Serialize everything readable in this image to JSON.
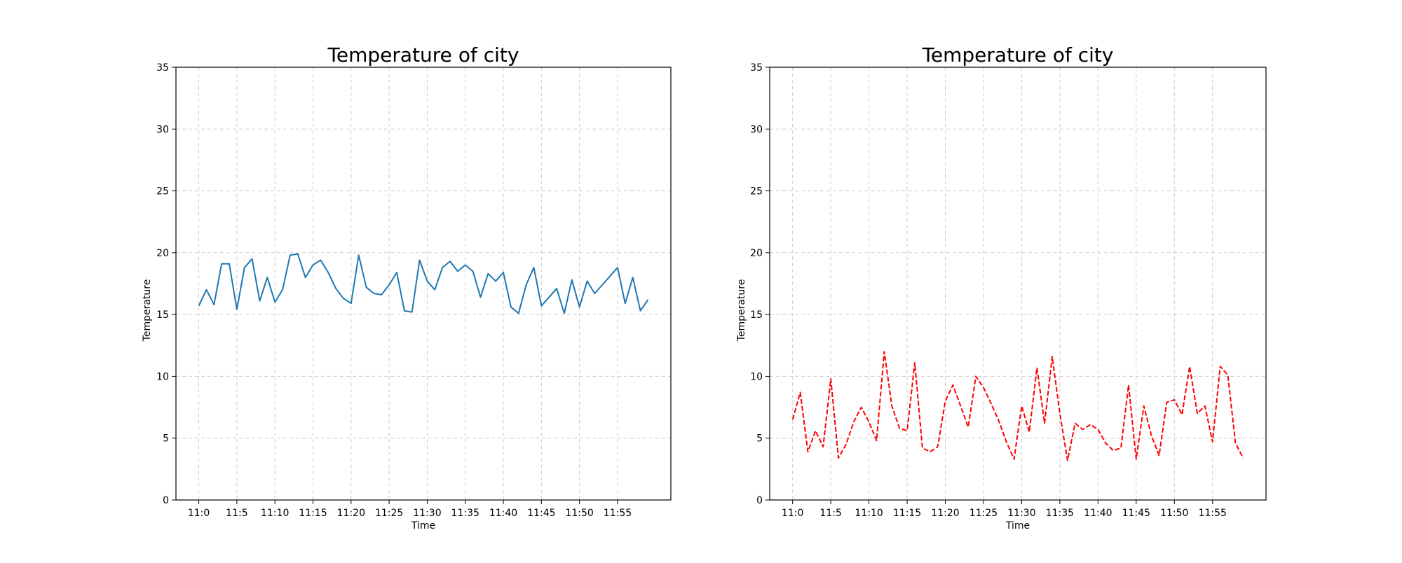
{
  "chart_data": [
    {
      "type": "line",
      "title": "Temperature of city",
      "xlabel": "Time",
      "ylabel": "Temperature",
      "xlim": [
        -3,
        62
      ],
      "ylim": [
        0,
        35
      ],
      "grid": true,
      "categories": [
        "11:0",
        "11:5",
        "11:10",
        "11:15",
        "11:20",
        "11:25",
        "11:30",
        "11:35",
        "11:40",
        "11:45",
        "11:50",
        "11:55"
      ],
      "yticks": [
        "0",
        "5",
        "10",
        "15",
        "20",
        "25",
        "30",
        "35"
      ],
      "series": [
        {
          "color": "#1f77b4",
          "line_style": "solid",
          "x": [
            0,
            1,
            2,
            3,
            4,
            5,
            6,
            7,
            8,
            9,
            10,
            11,
            12,
            13,
            14,
            15,
            16,
            17,
            18,
            19,
            20,
            21,
            22,
            23,
            24,
            25,
            26,
            27,
            28,
            29,
            30,
            31,
            32,
            33,
            34,
            35,
            36,
            37,
            38,
            39,
            40,
            41,
            42,
            43,
            44,
            45,
            46,
            47,
            48,
            49,
            50,
            51,
            52,
            53,
            54,
            55,
            56,
            57,
            58,
            59
          ],
          "values": [
            15.7,
            17.0,
            15.8,
            19.1,
            19.1,
            15.4,
            18.8,
            19.5,
            16.1,
            18.0,
            16.0,
            17.0,
            19.8,
            19.9,
            18.0,
            19.0,
            19.4,
            18.4,
            17.1,
            16.3,
            15.9,
            19.8,
            17.2,
            16.7,
            16.6,
            17.4,
            18.4,
            15.3,
            15.2,
            19.4,
            17.7,
            17.0,
            18.8,
            19.3,
            18.5,
            19.0,
            18.5,
            16.4,
            18.3,
            17.7,
            18.4,
            15.6,
            15.1,
            17.4,
            18.8,
            15.7,
            16.4,
            17.1,
            15.1,
            17.8,
            15.6,
            17.7,
            16.7,
            17.4,
            18.1,
            18.8,
            15.9,
            18.0,
            15.3,
            16.2
          ]
        }
      ]
    },
    {
      "type": "line",
      "title": "Temperature of city",
      "xlabel": "Time",
      "ylabel": "Temperature",
      "xlim": [
        -3,
        62
      ],
      "ylim": [
        0,
        35
      ],
      "grid": true,
      "categories": [
        "11:0",
        "11:5",
        "11:10",
        "11:15",
        "11:20",
        "11:25",
        "11:30",
        "11:35",
        "11:40",
        "11:45",
        "11:50",
        "11:55"
      ],
      "yticks": [
        "0",
        "5",
        "10",
        "15",
        "20",
        "25",
        "30",
        "35"
      ],
      "series": [
        {
          "color": "#ff0000",
          "line_style": "dashed",
          "x": [
            0,
            1,
            2,
            3,
            4,
            5,
            6,
            7,
            8,
            9,
            10,
            11,
            12,
            13,
            14,
            15,
            16,
            17,
            18,
            19,
            20,
            21,
            22,
            23,
            24,
            25,
            26,
            27,
            28,
            29,
            30,
            31,
            32,
            33,
            34,
            35,
            36,
            37,
            38,
            39,
            40,
            41,
            42,
            43,
            44,
            45,
            46,
            47,
            48,
            49,
            50,
            51,
            52,
            53,
            54,
            55,
            56,
            57,
            58,
            59
          ],
          "values": [
            6.5,
            8.7,
            3.9,
            5.6,
            4.3,
            9.8,
            3.4,
            4.5,
            6.3,
            7.5,
            6.3,
            4.8,
            12.0,
            7.6,
            5.8,
            5.6,
            11.1,
            4.2,
            3.9,
            4.3,
            8.0,
            9.3,
            7.6,
            5.9,
            10.0,
            9.1,
            7.8,
            6.4,
            4.7,
            3.3,
            7.6,
            5.5,
            10.7,
            6.2,
            11.6,
            7.0,
            3.2,
            6.2,
            5.7,
            6.1,
            5.7,
            4.6,
            4.0,
            4.2,
            9.3,
            3.3,
            7.6,
            5.2,
            3.6,
            7.9,
            8.1,
            6.9,
            10.8,
            7.0,
            7.6,
            4.7,
            10.8,
            10.1,
            4.6,
            3.4
          ]
        }
      ]
    }
  ]
}
